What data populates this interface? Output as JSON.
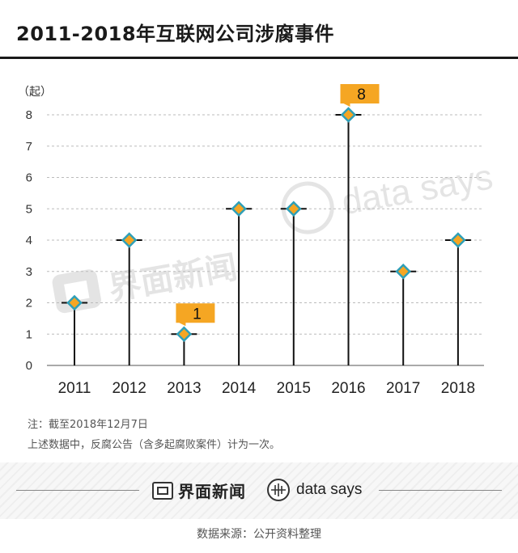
{
  "title": "2011-2018年互联网公司涉腐事件",
  "chart_data": {
    "type": "lollipop",
    "title": "2011-2018年互联网公司涉腐事件",
    "ylabel": "（起）",
    "xlabel": "",
    "categories": [
      "2011",
      "2012",
      "2013",
      "2014",
      "2015",
      "2016",
      "2017",
      "2018"
    ],
    "values": [
      2,
      4,
      1,
      5,
      5,
      8,
      3,
      4
    ],
    "ylim": [
      0,
      8
    ],
    "yticks": [
      0,
      1,
      2,
      3,
      4,
      5,
      6,
      7,
      8
    ],
    "grid": true,
    "callouts": [
      {
        "category": "2013",
        "label": "1"
      },
      {
        "category": "2016",
        "label": "8"
      }
    ],
    "colors": {
      "stem": "#111111",
      "marker_fill": "#f5a623",
      "marker_border": "#2e9fb8",
      "callout": "#f5a623",
      "grid": "#bbbbbb"
    }
  },
  "watermarks": {
    "left": "界面新闻",
    "right": "data says"
  },
  "notes": [
    "注：截至2018年12月7日",
    "上述数据中，反腐公告（含多起腐败案件）计为一次。"
  ],
  "footer": {
    "brand1": "界面新闻",
    "brand2": "data says"
  },
  "source": "数据来源：公开资料整理"
}
